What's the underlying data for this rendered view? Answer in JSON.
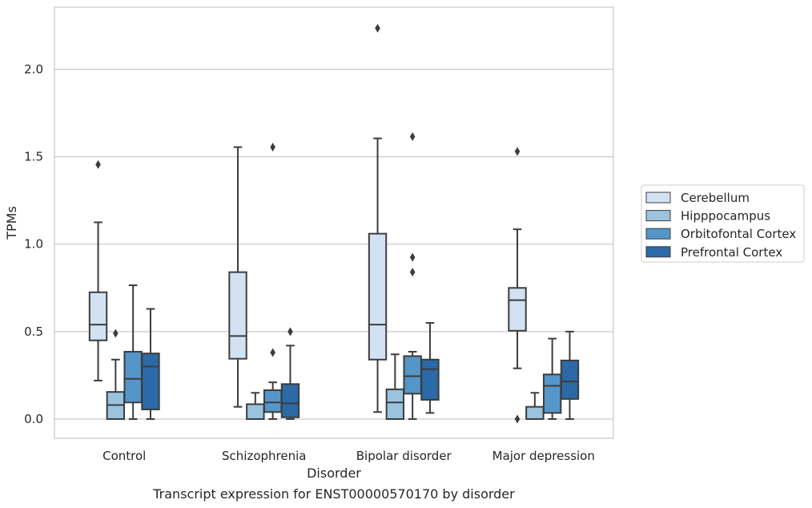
{
  "chart_data": {
    "type": "box",
    "title": "Transcript expression for ENST00000570170 by disorder",
    "xlabel": "Disorder",
    "ylabel": "TPMs",
    "ylim": [
      -0.11,
      2.355
    ],
    "yticks": [
      0.0,
      0.5,
      1.0,
      1.5,
      2.0
    ],
    "ytick_labels": [
      "0.0",
      "0.5",
      "1.0",
      "1.5",
      "2.0"
    ],
    "grid": "horizontal",
    "legend_position": "right",
    "categories": [
      "Control",
      "Schizophrenia",
      "Bipolar disorder",
      "Major depression"
    ],
    "series": [
      {
        "name": "Cerebellum",
        "color": "#d2e2f3",
        "boxes": [
          {
            "whisker_low": 0.22,
            "q1": 0.45,
            "median": 0.54,
            "q3": 0.725,
            "whisker_high": 1.125,
            "outliers": [
              1.455
            ]
          },
          {
            "whisker_low": 0.07,
            "q1": 0.345,
            "median": 0.475,
            "q3": 0.84,
            "whisker_high": 1.555,
            "outliers": []
          },
          {
            "whisker_low": 0.04,
            "q1": 0.34,
            "median": 0.54,
            "q3": 1.06,
            "whisker_high": 1.605,
            "outliers": [
              2.235
            ]
          },
          {
            "whisker_low": 0.29,
            "q1": 0.505,
            "median": 0.68,
            "q3": 0.75,
            "whisker_high": 1.085,
            "outliers": [
              1.53,
              0.0
            ]
          }
        ]
      },
      {
        "name": "Hipppocampus",
        "color": "#9bc3de",
        "boxes": [
          {
            "whisker_low": 0.0,
            "q1": 0.0,
            "median": 0.08,
            "q3": 0.155,
            "whisker_high": 0.34,
            "outliers": [
              0.49
            ]
          },
          {
            "whisker_low": 0.0,
            "q1": 0.0,
            "median": 0.0,
            "q3": 0.085,
            "whisker_high": 0.15,
            "outliers": []
          },
          {
            "whisker_low": 0.0,
            "q1": 0.0,
            "median": 0.095,
            "q3": 0.17,
            "whisker_high": 0.37,
            "outliers": []
          },
          {
            "whisker_low": 0.0,
            "q1": 0.0,
            "median": 0.0,
            "q3": 0.07,
            "whisker_high": 0.15,
            "outliers": []
          }
        ]
      },
      {
        "name": "Orbitofontal Cortex",
        "color": "#5596c9",
        "boxes": [
          {
            "whisker_low": 0.0,
            "q1": 0.095,
            "median": 0.23,
            "q3": 0.385,
            "whisker_high": 0.765,
            "outliers": []
          },
          {
            "whisker_low": 0.0,
            "q1": 0.04,
            "median": 0.095,
            "q3": 0.165,
            "whisker_high": 0.21,
            "outliers": [
              1.555,
              0.38
            ]
          },
          {
            "whisker_low": 0.0,
            "q1": 0.145,
            "median": 0.245,
            "q3": 0.36,
            "whisker_high": 0.385,
            "outliers": [
              1.615,
              0.925,
              0.84
            ]
          },
          {
            "whisker_low": 0.0,
            "q1": 0.035,
            "median": 0.19,
            "q3": 0.255,
            "whisker_high": 0.46,
            "outliers": []
          }
        ]
      },
      {
        "name": "Prefrontal Cortex",
        "color": "#2b6aa6",
        "boxes": [
          {
            "whisker_low": 0.0,
            "q1": 0.055,
            "median": 0.3,
            "q3": 0.375,
            "whisker_high": 0.63,
            "outliers": []
          },
          {
            "whisker_low": 0.0,
            "q1": 0.01,
            "median": 0.09,
            "q3": 0.2,
            "whisker_high": 0.42,
            "outliers": [
              0.5
            ]
          },
          {
            "whisker_low": 0.035,
            "q1": 0.11,
            "median": 0.285,
            "q3": 0.34,
            "whisker_high": 0.55,
            "outliers": []
          },
          {
            "whisker_low": 0.0,
            "q1": 0.115,
            "median": 0.215,
            "q3": 0.335,
            "whisker_high": 0.5,
            "outliers": []
          }
        ]
      }
    ]
  }
}
